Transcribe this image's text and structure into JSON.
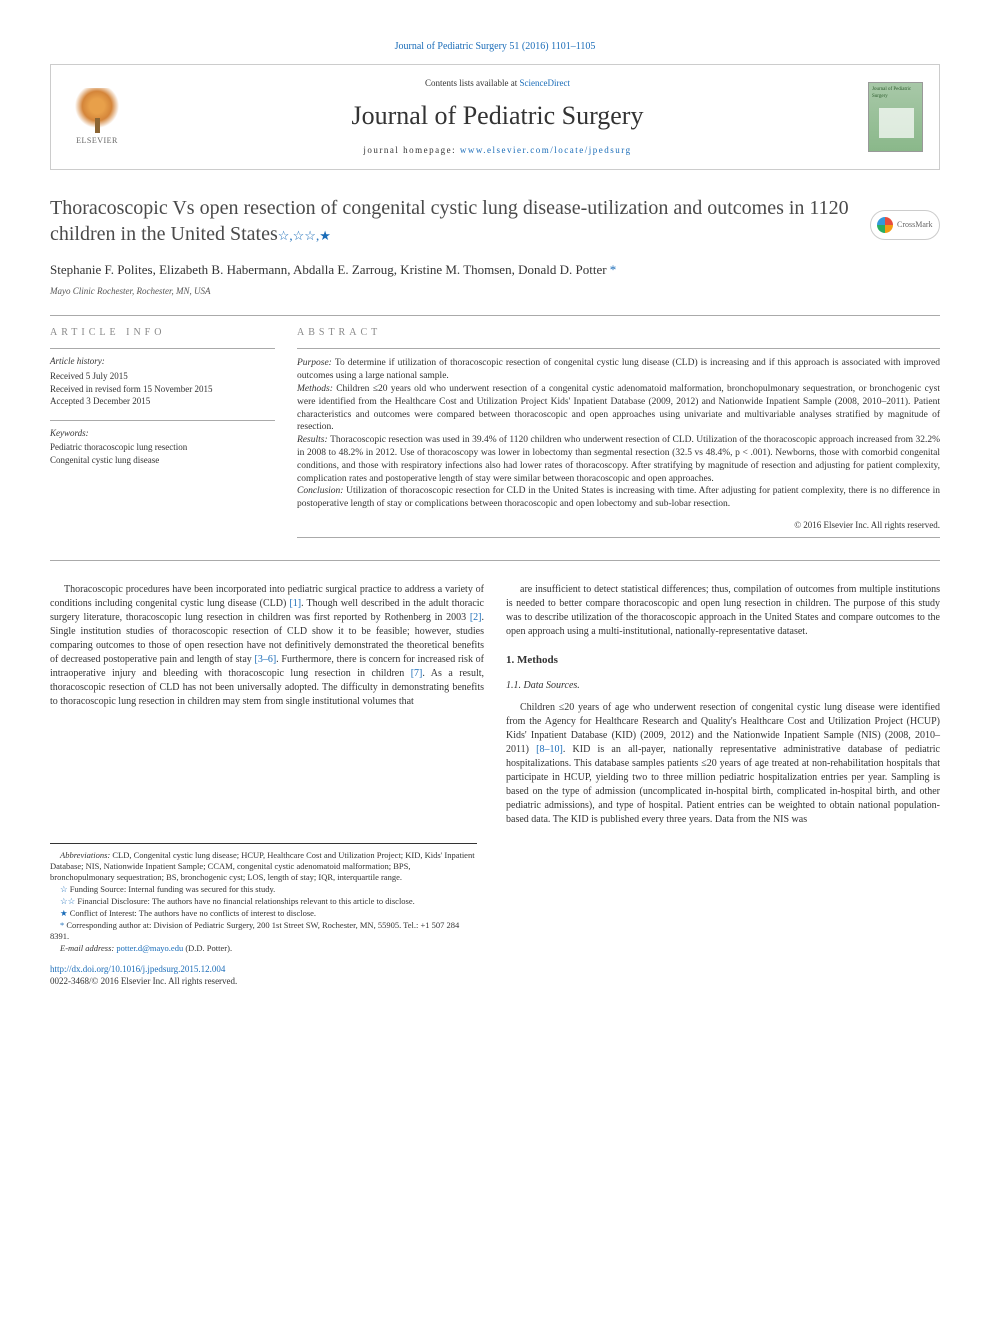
{
  "citation": "Journal of Pediatric Surgery 51 (2016) 1101–1105",
  "header": {
    "contents_prefix": "Contents lists available at ",
    "contents_link": "ScienceDirect",
    "journal_name": "Journal of Pediatric Surgery",
    "homepage_prefix": "journal homepage: ",
    "homepage_link": "www.elsevier.com/locate/jpedsurg",
    "elsevier_label": "ELSEVIER",
    "cover_text": "Journal of Pediatric Surgery"
  },
  "crossmark_label": "CrossMark",
  "title": "Thoracoscopic Vs open resection of congenital cystic lung disease-utilization and outcomes in 1120 children in the United States",
  "title_stars": "☆,☆☆,★",
  "authors": "Stephanie F. Polites, Elizabeth B. Habermann, Abdalla E. Zarroug, Kristine M. Thomsen, Donald D. Potter ",
  "author_marker": "*",
  "affiliation": "Mayo Clinic Rochester, Rochester, MN, USA",
  "article_info": {
    "label": "ARTICLE INFO",
    "history_label": "Article history:",
    "received": "Received 5 July 2015",
    "revised": "Received in revised form 15 November 2015",
    "accepted": "Accepted 3 December 2015",
    "keywords_label": "Keywords:",
    "kw1": "Pediatric thoracoscopic lung resection",
    "kw2": "Congenital cystic lung disease"
  },
  "abstract": {
    "label": "ABSTRACT",
    "purpose_label": "Purpose: ",
    "purpose": "To determine if utilization of thoracoscopic resection of congenital cystic lung disease (CLD) is increasing and if this approach is associated with improved outcomes using a large national sample.",
    "methods_label": "Methods: ",
    "methods": "Children ≤20 years old who underwent resection of a congenital cystic adenomatoid malformation, bronchopulmonary sequestration, or bronchogenic cyst were identified from the Healthcare Cost and Utilization Project Kids' Inpatient Database (2009, 2012) and Nationwide Inpatient Sample (2008, 2010–2011). Patient characteristics and outcomes were compared between thoracoscopic and open approaches using univariate and multivariable analyses stratified by magnitude of resection.",
    "results_label": "Results: ",
    "results": "Thoracoscopic resection was used in 39.4% of 1120 children who underwent resection of CLD. Utilization of the thoracoscopic approach increased from 32.2% in 2008 to 48.2% in 2012. Use of thoracoscopy was lower in lobectomy than segmental resection (32.5 vs 48.4%, p < .001). Newborns, those with comorbid congenital conditions, and those with respiratory infections also had lower rates of thoracoscopy. After stratifying by magnitude of resection and adjusting for patient complexity, complication rates and postoperative length of stay were similar between thoracoscopic and open approaches.",
    "conclusion_label": "Conclusion: ",
    "conclusion": "Utilization of thoracoscopic resection for CLD in the United States is increasing with time. After adjusting for patient complexity, there is no difference in postoperative length of stay or complications between thoracoscopic and open lobectomy and sub-lobar resection.",
    "copyright": "© 2016 Elsevier Inc. All rights reserved."
  },
  "body": {
    "col1_p1a": "Thoracoscopic procedures have been incorporated into pediatric surgical practice to address a variety of conditions including congenital cystic lung disease (CLD) ",
    "ref1": "[1]",
    "col1_p1b": ". Though well described in the adult thoracic surgery literature, thoracoscopic lung resection in children was first reported by Rothenberg in 2003 ",
    "ref2": "[2]",
    "col1_p1c": ". Single institution studies of thoracoscopic resection of CLD show it to be feasible; however, studies comparing outcomes to those of open resection have not definitively demonstrated the theoretical benefits of decreased postoperative pain and length of stay ",
    "ref36": "[3–6]",
    "col1_p1d": ". Furthermore, there is concern for increased risk of intraoperative injury and bleeding with thoracoscopic lung resection in children ",
    "ref7": "[7]",
    "col1_p1e": ". As a result, thoracoscopic resection of CLD has not been universally adopted. The difficulty in demonstrating benefits to thoracoscopic lung resection in children may stem from single institutional volumes that",
    "col2_p1": "are insufficient to detect statistical differences; thus, compilation of outcomes from multiple institutions is needed to better compare thoracoscopic and open lung resection in children. The purpose of this study was to describe utilization of the thoracoscopic approach in the United States and compare outcomes to the open approach using a multi-institutional, nationally-representative dataset.",
    "methods_heading": "1. Methods",
    "datasources_heading": "1.1. Data Sources.",
    "col2_p2a": "Children ≤20 years of age who underwent resection of congenital cystic lung disease were identified from the Agency for Healthcare Research and Quality's Healthcare Cost and Utilization Project (HCUP) Kids' Inpatient Database (KID) (2009, 2012) and the Nationwide Inpatient Sample (NIS) (2008, 2010–2011) ",
    "ref810": "[8–10]",
    "col2_p2b": ". KID is an all-payer, nationally representative administrative database of pediatric hospitalizations. This database samples patients ≤20 years of age treated at non-rehabilitation hospitals that participate in HCUP, yielding two to three million pediatric hospitalization entries per year. Sampling is based on the type of admission (uncomplicated in-hospital birth, complicated in-hospital birth, and other pediatric admissions), and type of hospital. Patient entries can be weighted to obtain national population-based data. The KID is published every three years. Data from the NIS was"
  },
  "footnotes": {
    "abbrev_label": "Abbreviations: ",
    "abbrev": "CLD, Congenital cystic lung disease; HCUP, Healthcare Cost and Utilization Project; KID, Kids' Inpatient Database; NIS, Nationwide Inpatient Sample; CCAM, congenital cystic adenomatoid malformation; BPS, bronchopulmonary sequestration; BS, bronchogenic cyst; LOS, length of stay; IQR, interquartile range.",
    "fn1_star": "☆ ",
    "fn1": "Funding Source: Internal funding was secured for this study.",
    "fn2_star": "☆☆ ",
    "fn2": "Financial Disclosure: The authors have no financial relationships relevant to this article to disclose.",
    "fn3_star": "★ ",
    "fn3": "Conflict of Interest: The authors have no conflicts of interest to disclose.",
    "fn4_star": "* ",
    "fn4": "Corresponding author at: Division of Pediatric Surgery, 200 1st Street SW, Rochester, MN, 55905. Tel.: +1 507 284 8391.",
    "email_label": "E-mail address: ",
    "email": "potter.d@mayo.edu",
    "email_suffix": " (D.D. Potter)."
  },
  "doi": {
    "link": "http://dx.doi.org/10.1016/j.jpedsurg.2015.12.004",
    "issn": "0022-3468/© 2016 Elsevier Inc. All rights reserved."
  },
  "colors": {
    "link": "#1a6cb8",
    "text": "#333333",
    "border": "#aaaaaa"
  }
}
